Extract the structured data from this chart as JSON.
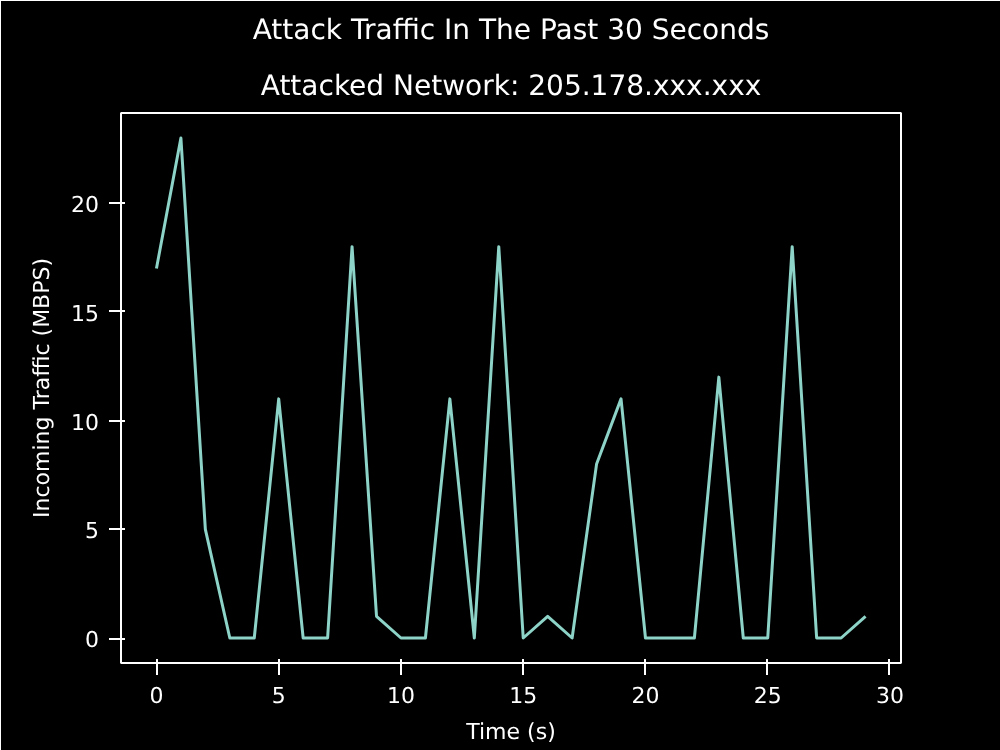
{
  "chart_data": {
    "type": "line",
    "title": "Attack Traffic In The Past 30 Seconds",
    "subtitle": "Attacked Network: 205.178.xxx.xxx",
    "xlabel": "Time (s)",
    "ylabel": "Incoming Traffic (MBPS)",
    "x": [
      0,
      1,
      2,
      3,
      4,
      5,
      6,
      7,
      8,
      9,
      10,
      11,
      12,
      13,
      14,
      15,
      16,
      17,
      18,
      19,
      20,
      21,
      22,
      23,
      24,
      25,
      26,
      27,
      28,
      29
    ],
    "series": [
      {
        "color": "#8dd3c7",
        "values": [
          17,
          23,
          5,
          0,
          0,
          11,
          0,
          0,
          18,
          1,
          0,
          0,
          11,
          0,
          18,
          0,
          1,
          0,
          8,
          11,
          0,
          0,
          0,
          12,
          0,
          0,
          18,
          0,
          0,
          1
        ]
      }
    ],
    "xlim": [
      -1.45,
      30.45
    ],
    "ylim": [
      -1.15,
      24.15
    ],
    "xticks": [
      0,
      5,
      10,
      15,
      20,
      25,
      30
    ],
    "yticks": [
      0,
      5,
      10,
      15,
      20
    ],
    "grid": false,
    "marker": "none",
    "line_style": "solid"
  }
}
